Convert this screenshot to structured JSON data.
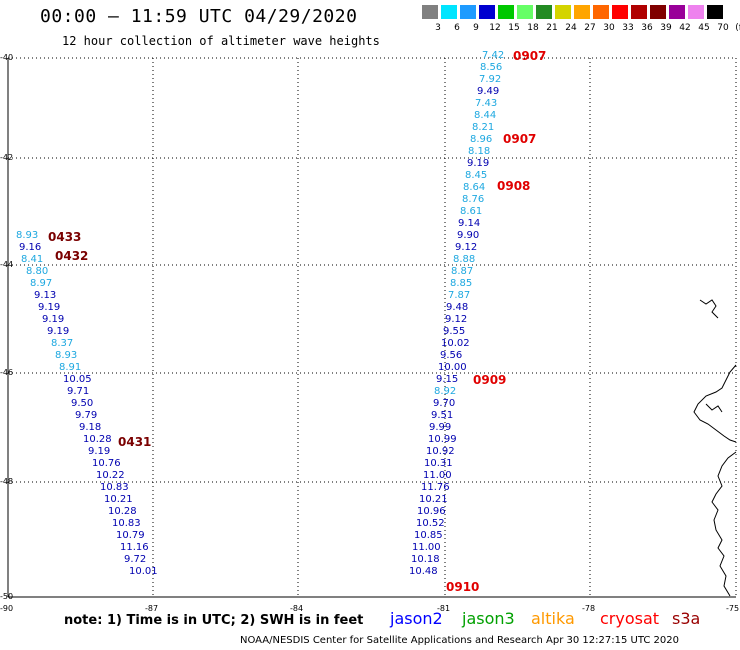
{
  "header": {
    "title": "00:00 — 11:59 UTC 04/29/2020",
    "subtitle": "12 hour collection of altimeter wave heights"
  },
  "scale": {
    "colors": [
      "#808080",
      "#00e5ff",
      "#1e9bff",
      "#0000d0",
      "#00c800",
      "#66ff66",
      "#228b22",
      "#d4d400",
      "#ffa500",
      "#ff6600",
      "#ff0000",
      "#b00000",
      "#800000",
      "#990099",
      "#ee82ee",
      "#000000"
    ],
    "labels": [
      "3",
      "6",
      "9",
      "12",
      "15",
      "18",
      "21",
      "24",
      "27",
      "30",
      "33",
      "36",
      "39",
      "42",
      "45",
      "70",
      "(ft)"
    ]
  },
  "axes": {
    "lat_labels": [
      "-40",
      "-42",
      "-44",
      "-46",
      "-48",
      "-50"
    ],
    "lon_labels": [
      "-90",
      "-87",
      "-84",
      "-81",
      "-78",
      "-75"
    ]
  },
  "colors": {
    "cyan": "#1ea8e0",
    "blue": "#0000b0",
    "time_red": "#e00000",
    "time_dark": "#7a0000"
  },
  "tracks": {
    "left_values": [
      {
        "v": "8.93",
        "c": "cyan"
      },
      {
        "v": "9.16",
        "c": "blue"
      },
      {
        "v": "8.41",
        "c": "cyan"
      },
      {
        "v": "8.80",
        "c": "cyan"
      },
      {
        "v": "8.97",
        "c": "cyan"
      },
      {
        "v": "9.13",
        "c": "blue"
      },
      {
        "v": "9.19",
        "c": "blue"
      },
      {
        "v": "9.19",
        "c": "blue"
      },
      {
        "v": "9.19",
        "c": "blue"
      },
      {
        "v": "8.37",
        "c": "cyan"
      },
      {
        "v": "8.93",
        "c": "cyan"
      },
      {
        "v": "8.91",
        "c": "cyan"
      },
      {
        "v": "10.05",
        "c": "blue"
      },
      {
        "v": "9.71",
        "c": "blue"
      },
      {
        "v": "9.50",
        "c": "blue"
      },
      {
        "v": "9.79",
        "c": "blue"
      },
      {
        "v": "9.18",
        "c": "blue"
      },
      {
        "v": "10.28",
        "c": "blue"
      },
      {
        "v": "9.19",
        "c": "blue"
      },
      {
        "v": "10.76",
        "c": "blue"
      },
      {
        "v": "10.22",
        "c": "blue"
      },
      {
        "v": "10.83",
        "c": "blue"
      },
      {
        "v": "10.21",
        "c": "blue"
      },
      {
        "v": "10.28",
        "c": "blue"
      },
      {
        "v": "10.83",
        "c": "blue"
      },
      {
        "v": "10.79",
        "c": "blue"
      },
      {
        "v": "11.16",
        "c": "blue"
      },
      {
        "v": "9.72",
        "c": "blue"
      },
      {
        "v": "10.01",
        "c": "blue"
      }
    ],
    "right_values": [
      {
        "v": "7.42",
        "c": "cyan"
      },
      {
        "v": "8.56",
        "c": "cyan"
      },
      {
        "v": "7.92",
        "c": "cyan"
      },
      {
        "v": "9.49",
        "c": "blue"
      },
      {
        "v": "7.43",
        "c": "cyan"
      },
      {
        "v": "8.44",
        "c": "cyan"
      },
      {
        "v": "8.21",
        "c": "cyan"
      },
      {
        "v": "8.96",
        "c": "cyan"
      },
      {
        "v": "8.18",
        "c": "cyan"
      },
      {
        "v": "9.19",
        "c": "blue"
      },
      {
        "v": "8.45",
        "c": "cyan"
      },
      {
        "v": "8.64",
        "c": "cyan"
      },
      {
        "v": "8.76",
        "c": "cyan"
      },
      {
        "v": "8.61",
        "c": "cyan"
      },
      {
        "v": "9.14",
        "c": "blue"
      },
      {
        "v": "9.90",
        "c": "blue"
      },
      {
        "v": "9.12",
        "c": "blue"
      },
      {
        "v": "8.88",
        "c": "cyan"
      },
      {
        "v": "8.87",
        "c": "cyan"
      },
      {
        "v": "8.85",
        "c": "cyan"
      },
      {
        "v": "7.87",
        "c": "cyan"
      },
      {
        "v": "9.48",
        "c": "blue"
      },
      {
        "v": "9.12",
        "c": "blue"
      },
      {
        "v": "9.55",
        "c": "blue"
      },
      {
        "v": "10.02",
        "c": "blue"
      },
      {
        "v": "9.56",
        "c": "blue"
      },
      {
        "v": "10.00",
        "c": "blue"
      },
      {
        "v": "9.15",
        "c": "blue"
      },
      {
        "v": "8.92",
        "c": "cyan"
      },
      {
        "v": "9.70",
        "c": "blue"
      },
      {
        "v": "9.51",
        "c": "blue"
      },
      {
        "v": "9.99",
        "c": "blue"
      },
      {
        "v": "10.99",
        "c": "blue"
      },
      {
        "v": "10.92",
        "c": "blue"
      },
      {
        "v": "10.31",
        "c": "blue"
      },
      {
        "v": "11.00",
        "c": "blue"
      },
      {
        "v": "11.76",
        "c": "blue"
      },
      {
        "v": "10.21",
        "c": "blue"
      },
      {
        "v": "10.96",
        "c": "blue"
      },
      {
        "v": "10.52",
        "c": "blue"
      },
      {
        "v": "10.85",
        "c": "blue"
      },
      {
        "v": "11.00",
        "c": "blue"
      },
      {
        "v": "10.18",
        "c": "blue"
      },
      {
        "v": "10.48",
        "c": "blue"
      }
    ],
    "time_labels": [
      {
        "t": "0433",
        "c": "time_dark"
      },
      {
        "t": "0432",
        "c": "time_dark"
      },
      {
        "t": "0431",
        "c": "time_dark"
      },
      {
        "t": "0907",
        "c": "time_red"
      },
      {
        "t": "0907",
        "c": "time_red"
      },
      {
        "t": "0908",
        "c": "time_red"
      },
      {
        "t": "0909",
        "c": "time_red"
      },
      {
        "t": "0910",
        "c": "time_red"
      }
    ]
  },
  "footer": {
    "note": "note:  1) Time is in UTC;  2) SWH is in feet",
    "satellites": [
      {
        "name": "jason2",
        "color": "#0000ff"
      },
      {
        "name": "jason3",
        "color": "#00a000"
      },
      {
        "name": "altika",
        "color": "#ff9900"
      },
      {
        "name": "cryosat",
        "color": "#ff0000"
      },
      {
        "name": "s3a",
        "color": "#990000"
      }
    ],
    "credit": "NOAA/NESDIS Center for Satellite Applications and Research    Apr 30 12:27:15 UTC 2020"
  }
}
